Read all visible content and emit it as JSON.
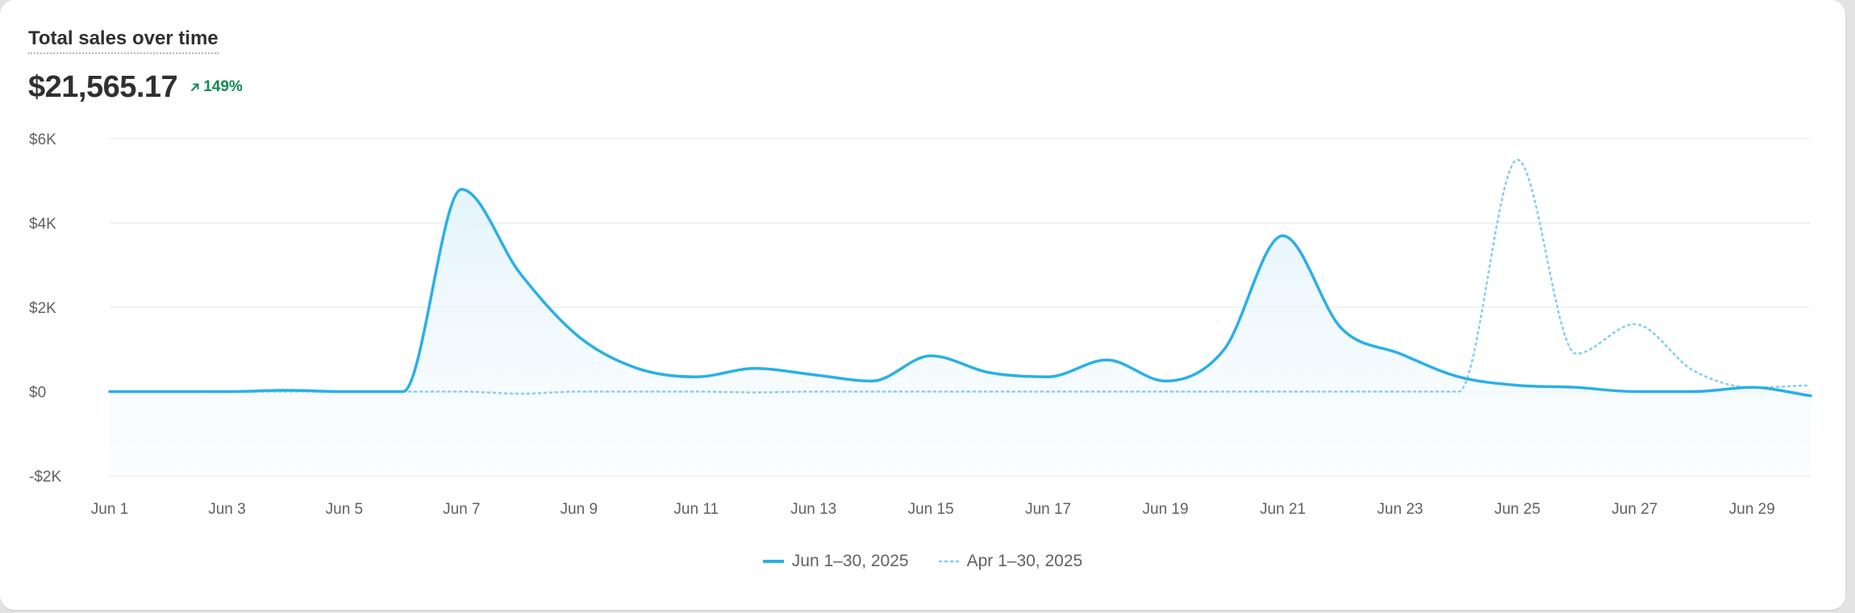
{
  "card": {
    "title": "Total sales over time",
    "total": "$21,565.17",
    "change": "149%",
    "change_icon": "arrow-up-right-icon"
  },
  "colors": {
    "line": "#29b0e6",
    "comparison": "#82cdee",
    "fill_top": "#e6f5fc",
    "grid": "#ededed",
    "text": "#616161",
    "positive": "#0f8a55"
  },
  "chart_data": {
    "type": "line",
    "ylim": [
      -2000,
      6000
    ],
    "yticks": [
      6000,
      4000,
      2000,
      0,
      -2000
    ],
    "ytick_labels": [
      "$6K",
      "$4K",
      "$2K",
      "$0",
      "-$2K"
    ],
    "grid": true,
    "xticks": [
      "Jun 1",
      "Jun 3",
      "Jun 5",
      "Jun 7",
      "Jun 9",
      "Jun 11",
      "Jun 13",
      "Jun 15",
      "Jun 17",
      "Jun 19",
      "Jun 21",
      "Jun 23",
      "Jun 25",
      "Jun 27",
      "Jun 29"
    ],
    "x": [
      1,
      2,
      3,
      4,
      5,
      6,
      7,
      8,
      9,
      10,
      11,
      12,
      13,
      14,
      15,
      16,
      17,
      18,
      19,
      20,
      21,
      22,
      23,
      24,
      25,
      26,
      27,
      28,
      29,
      30
    ],
    "legend_position": "bottom-center",
    "series": [
      {
        "name": "Jun 1–30, 2025",
        "style": "solid",
        "values": [
          0,
          0,
          0,
          30,
          0,
          0,
          4800,
          2800,
          1300,
          550,
          350,
          550,
          400,
          250,
          850,
          450,
          350,
          750,
          250,
          1000,
          3700,
          1500,
          900,
          350,
          150,
          100,
          0,
          0,
          100,
          -100
        ]
      },
      {
        "name": "Apr 1–30, 2025",
        "style": "dotted",
        "values": [
          0,
          0,
          0,
          0,
          0,
          0,
          0,
          -50,
          0,
          0,
          0,
          -20,
          0,
          0,
          0,
          0,
          0,
          0,
          0,
          0,
          0,
          0,
          0,
          0,
          5500,
          900,
          1600,
          500,
          100,
          150
        ]
      }
    ]
  }
}
